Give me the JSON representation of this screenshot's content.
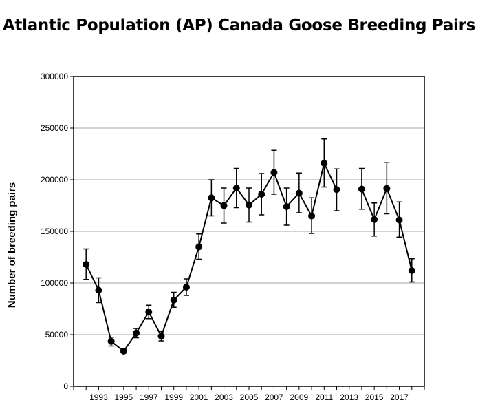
{
  "chart_data": {
    "type": "line",
    "title": "Atlantic Population (AP) Canada Goose Breeding Pairs",
    "xlabel": "",
    "ylabel": "Number of breeding pairs",
    "xlim": [
      1991,
      2019
    ],
    "ylim": [
      0,
      300000
    ],
    "yticks": [
      0,
      50000,
      100000,
      150000,
      200000,
      250000,
      300000
    ],
    "ytick_labels": [
      "0",
      "50000",
      "100000",
      "150000",
      "200000",
      "250000",
      "300000"
    ],
    "xticks": [
      1993,
      1995,
      1997,
      1999,
      2001,
      2003,
      2005,
      2007,
      2009,
      2011,
      2013,
      2015,
      2017
    ],
    "xtick_labels": [
      "1993",
      "1995",
      "1997",
      "1999",
      "2001",
      "2003",
      "2005",
      "2007",
      "2009",
      "2011",
      "2013",
      "2015",
      "2017"
    ],
    "grid": "horizontal",
    "legend": "none",
    "colors": {
      "line": "#000000",
      "marker": "#000000",
      "grid": "#a6a6a6"
    },
    "series": [
      {
        "segments": [
          [
            {
              "x": 1992,
              "y": 118000,
              "lo": 103500,
              "hi": 133000
            },
            {
              "x": 1993,
              "y": 93000,
              "lo": 81000,
              "hi": 105000
            },
            {
              "x": 1994,
              "y": 43500,
              "lo": 39000,
              "hi": 47500
            },
            {
              "x": 1995,
              "y": 34000,
              "lo": 32500,
              "hi": 36000
            },
            {
              "x": 1996,
              "y": 51500,
              "lo": 47000,
              "hi": 56000
            },
            {
              "x": 1997,
              "y": 72000,
              "lo": 65500,
              "hi": 78500
            },
            {
              "x": 1998,
              "y": 48500,
              "lo": 44000,
              "hi": 53000
            },
            {
              "x": 1999,
              "y": 83500,
              "lo": 76500,
              "hi": 91000
            },
            {
              "x": 2000,
              "y": 96000,
              "lo": 88000,
              "hi": 104000
            },
            {
              "x": 2001,
              "y": 135000,
              "lo": 123000,
              "hi": 147500
            },
            {
              "x": 2002,
              "y": 182500,
              "lo": 165000,
              "hi": 200000
            },
            {
              "x": 2003,
              "y": 175000,
              "lo": 158000,
              "hi": 192000
            },
            {
              "x": 2004,
              "y": 192000,
              "lo": 173000,
              "hi": 211000
            },
            {
              "x": 2005,
              "y": 175500,
              "lo": 159000,
              "hi": 192000
            },
            {
              "x": 2006,
              "y": 186000,
              "lo": 166000,
              "hi": 206000
            },
            {
              "x": 2007,
              "y": 207000,
              "lo": 186000,
              "hi": 228500
            },
            {
              "x": 2008,
              "y": 174000,
              "lo": 156000,
              "hi": 192000
            },
            {
              "x": 2009,
              "y": 187000,
              "lo": 168000,
              "hi": 206500
            },
            {
              "x": 2010,
              "y": 165000,
              "lo": 148000,
              "hi": 182500
            },
            {
              "x": 2011,
              "y": 216000,
              "lo": 193000,
              "hi": 239500
            },
            {
              "x": 2012,
              "y": 190500,
              "lo": 170000,
              "hi": 210500
            }
          ],
          [
            {
              "x": 2014,
              "y": 191000,
              "lo": 171500,
              "hi": 211000
            },
            {
              "x": 2015,
              "y": 161500,
              "lo": 145500,
              "hi": 177500
            },
            {
              "x": 2016,
              "y": 191500,
              "lo": 167000,
              "hi": 216500
            },
            {
              "x": 2017,
              "y": 161000,
              "lo": 144500,
              "hi": 178500
            },
            {
              "x": 2018,
              "y": 112000,
              "lo": 101000,
              "hi": 123500
            }
          ]
        ]
      }
    ]
  }
}
